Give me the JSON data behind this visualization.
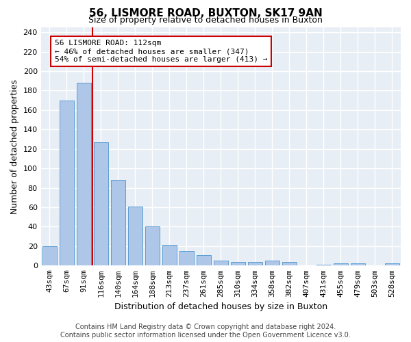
{
  "title1": "56, LISMORE ROAD, BUXTON, SK17 9AN",
  "title2": "Size of property relative to detached houses in Buxton",
  "xlabel": "Distribution of detached houses by size in Buxton",
  "ylabel": "Number of detached properties",
  "categories": [
    "43sqm",
    "67sqm",
    "91sqm",
    "116sqm",
    "140sqm",
    "164sqm",
    "188sqm",
    "213sqm",
    "237sqm",
    "261sqm",
    "285sqm",
    "310sqm",
    "334sqm",
    "358sqm",
    "382sqm",
    "407sqm",
    "431sqm",
    "455sqm",
    "479sqm",
    "503sqm",
    "528sqm"
  ],
  "values": [
    20,
    170,
    188,
    127,
    88,
    61,
    40,
    21,
    15,
    11,
    5,
    4,
    4,
    5,
    4,
    0,
    1,
    2,
    2,
    0,
    2
  ],
  "bar_color": "#aec6e8",
  "bar_edge_color": "#5a9fd4",
  "vline_color": "#cc0000",
  "vline_x": 2.5,
  "annotation_text": "56 LISMORE ROAD: 112sqm\n← 46% of detached houses are smaller (347)\n54% of semi-detached houses are larger (413) →",
  "annotation_box_color": "#ffffff",
  "annotation_box_edge": "#cc0000",
  "ylim": [
    0,
    245
  ],
  "yticks": [
    0,
    20,
    40,
    60,
    80,
    100,
    120,
    140,
    160,
    180,
    200,
    220,
    240
  ],
  "bg_color": "#e8eef5",
  "grid_color": "#ffffff",
  "footer": "Contains HM Land Registry data © Crown copyright and database right 2024.\nContains public sector information licensed under the Open Government Licence v3.0.",
  "title1_fontsize": 11,
  "title2_fontsize": 9,
  "xlabel_fontsize": 9,
  "ylabel_fontsize": 9,
  "tick_fontsize": 8,
  "annotation_fontsize": 8,
  "footer_fontsize": 7
}
